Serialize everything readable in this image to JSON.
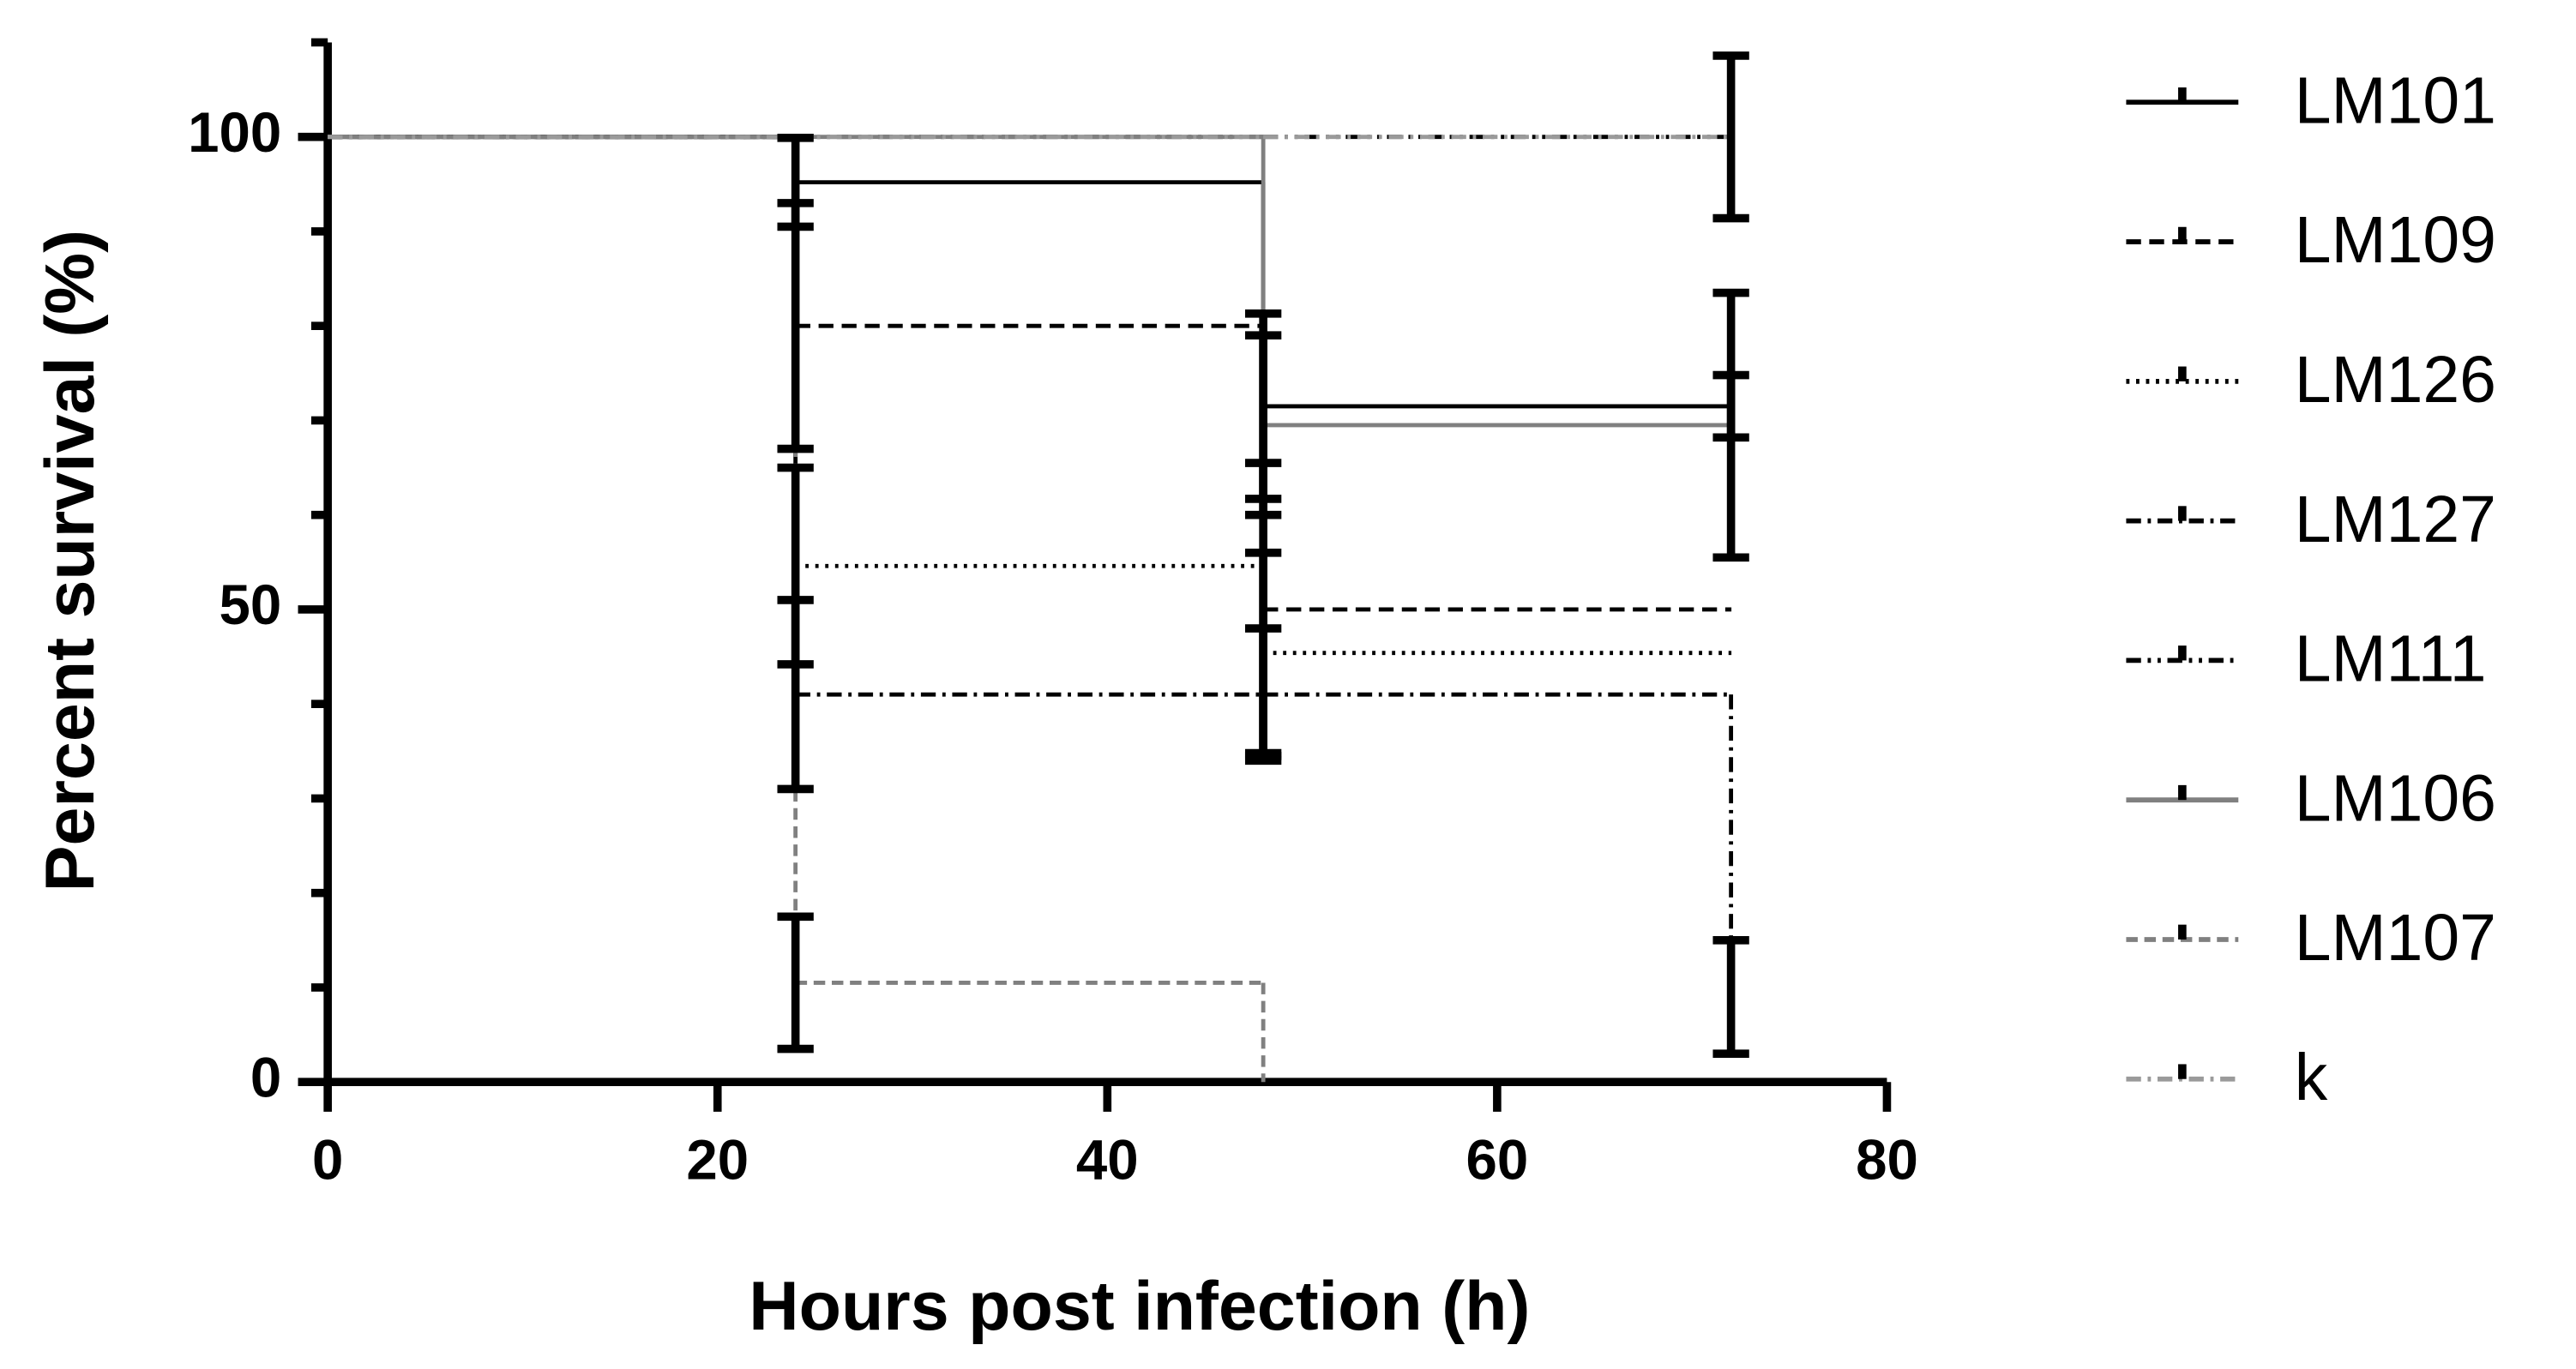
{
  "chart_data": {
    "type": "survival",
    "xlabel": "Hours post infection (h)",
    "ylabel": "Percent survival (%)",
    "x": [
      0,
      24,
      48,
      72
    ],
    "xlim": [
      0,
      80
    ],
    "xticks": [
      0,
      20,
      40,
      60,
      80
    ],
    "ylim": [
      0,
      110
    ],
    "yticks": [
      0,
      50,
      100
    ],
    "y_minor_ticks": [
      10,
      20,
      30,
      40,
      60,
      70,
      80,
      90,
      110
    ],
    "legend": "right",
    "series": [
      {
        "name": "LM101",
        "color": "#000000",
        "dash": "none",
        "values": [
          100,
          95.2,
          71.5,
          71.5
        ],
        "errors": [
          null,
          4.7,
          9.8,
          3.3
        ]
      },
      {
        "name": "LM109",
        "color": "#000000",
        "dash": "9 5",
        "values": [
          100,
          80,
          50,
          50
        ],
        "errors": [
          null,
          13,
          15.5,
          null
        ]
      },
      {
        "name": "LM126",
        "color": "#000000",
        "dash": "2 4",
        "values": [
          100,
          54.6,
          45.4,
          45.4
        ],
        "errors": [
          null,
          10.4,
          10.6,
          null
        ]
      },
      {
        "name": "LM127",
        "color": "#000000",
        "dash": "9 4 2 4",
        "values": [
          100,
          41,
          41,
          9
        ],
        "errors": [
          null,
          10,
          7,
          6
        ]
      },
      {
        "name": "LM111",
        "color": "#000000",
        "dash": "9 4 2 4 2 4",
        "values": [
          100,
          100,
          100,
          100
        ],
        "errors": [
          null,
          null,
          null,
          8.6
        ]
      },
      {
        "name": "LM106",
        "color": "#808080",
        "dash": "none",
        "values": [
          100,
          100,
          69.5,
          69.5
        ],
        "errors": [
          null,
          null,
          9.5,
          14
        ]
      },
      {
        "name": "LM107",
        "color": "#808080",
        "dash": "7 4",
        "values": [
          100,
          10.5,
          0,
          null
        ],
        "errors": [
          null,
          7,
          null,
          null
        ]
      },
      {
        "name": "k",
        "color": "#9a9a9a",
        "dash": "9 4 2 4",
        "values": [
          100,
          100,
          100,
          100
        ],
        "errors": [
          null,
          null,
          null,
          null
        ]
      }
    ]
  }
}
